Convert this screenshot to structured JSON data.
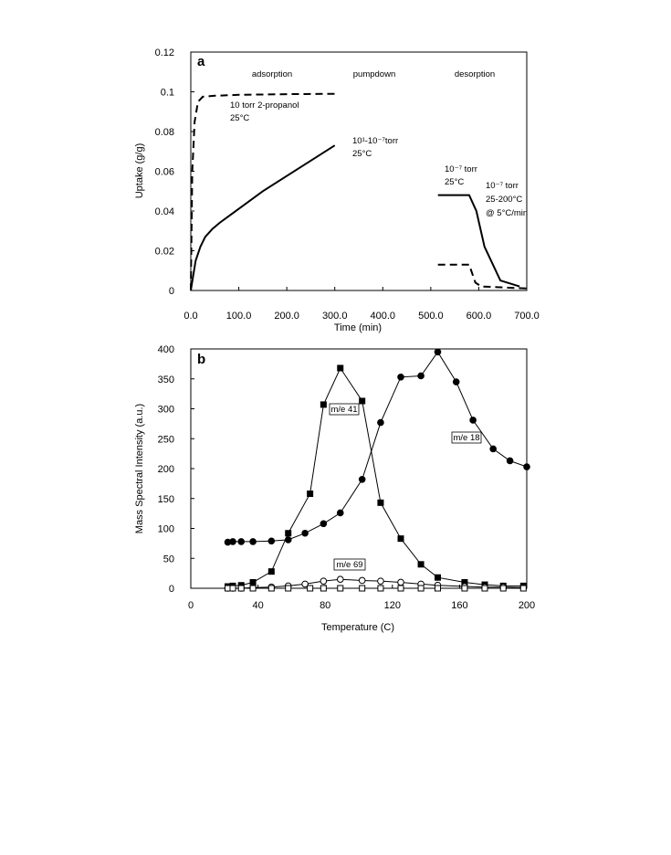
{
  "chart_data": [
    {
      "type": "line",
      "panel_label": "a",
      "ylabel": "Uptake (g/g)",
      "xlabel": "Time (min)",
      "xlim": [
        0,
        700
      ],
      "ylim": [
        0,
        0.12
      ],
      "x_ticks": [
        "0.0",
        "100.0",
        "200.0",
        "300.0",
        "400.0",
        "500.0",
        "600.0",
        "700.0"
      ],
      "y_ticks": [
        "0",
        "0.02",
        "0.04",
        "0.06",
        "0.08",
        "0.1",
        "0.12"
      ],
      "grid": false,
      "phase_labels": [
        "adsorption",
        "pumpdown",
        "desorption"
      ],
      "annotations": [
        {
          "lines": [
            "10 torr 2-propanol",
            "25°C"
          ]
        },
        {
          "lines": [
            "10¹-10⁻⁷torr",
            "25°C"
          ]
        },
        {
          "lines": [
            "10⁻⁷ torr",
            "25°C"
          ]
        },
        {
          "lines": [
            "10⁻⁷ torr",
            "25-200°C",
            "@ 5°C/min"
          ]
        }
      ],
      "series": [
        {
          "style": "dashed",
          "x": [
            0,
            3,
            8,
            15,
            25,
            50,
            100,
            200,
            300
          ],
          "y": [
            0,
            0.06,
            0.085,
            0.095,
            0.0975,
            0.098,
            0.0985,
            0.0988,
            0.099
          ]
        },
        {
          "style": "solid",
          "x": [
            0,
            10,
            20,
            30,
            45,
            60,
            150,
            300
          ],
          "y": [
            0,
            0.015,
            0.022,
            0.027,
            0.031,
            0.034,
            0.05,
            0.073
          ]
        },
        {
          "style": "solid",
          "x": [
            515,
            580,
            595,
            612,
            645,
            685
          ],
          "y": [
            0.048,
            0.048,
            0.04,
            0.022,
            0.005,
            0.002
          ]
        },
        {
          "style": "dashed",
          "x": [
            515,
            580,
            593,
            605,
            700
          ],
          "y": [
            0.013,
            0.013,
            0.004,
            0.002,
            0.001
          ]
        }
      ]
    },
    {
      "type": "scatter",
      "panel_label": "b",
      "ylabel": "Mass Spectral Intensity (a.u.)",
      "xlabel": "Temperature (C)",
      "xlim": [
        0,
        200
      ],
      "ylim": [
        0,
        400
      ],
      "x_ticks": [
        "0",
        "40",
        "80",
        "120",
        "160",
        "200"
      ],
      "y_ticks": [
        "0",
        "50",
        "100",
        "150",
        "200",
        "250",
        "300",
        "350",
        "400"
      ],
      "grid": false,
      "series": [
        {
          "label": "m/e 41",
          "marker": "filled-square",
          "x": [
            22,
            25,
            30,
            37,
            48,
            58,
            71,
            79,
            89,
            102,
            113,
            125,
            137,
            147,
            163,
            175,
            186,
            198
          ],
          "y": [
            3,
            4,
            5,
            10,
            28,
            92,
            158,
            307,
            368,
            313,
            143,
            83,
            40,
            18,
            10,
            6,
            4,
            4
          ]
        },
        {
          "label": "m/e 18",
          "marker": "filled-circle",
          "x": [
            22,
            25,
            30,
            37,
            48,
            58,
            68,
            79,
            89,
            102,
            113,
            125,
            137,
            147,
            158,
            168,
            180,
            190,
            200
          ],
          "y": [
            77,
            78,
            78,
            78,
            79,
            81,
            92,
            108,
            126,
            182,
            277,
            353,
            355,
            395,
            345,
            281,
            233,
            213,
            203
          ]
        },
        {
          "label": "m/e 69",
          "marker": "open-circle",
          "x": [
            22,
            25,
            30,
            37,
            48,
            58,
            68,
            79,
            89,
            102,
            113,
            125,
            137,
            147,
            163,
            175,
            186,
            198
          ],
          "y": [
            0,
            0,
            0,
            1,
            2,
            4,
            7,
            12,
            15,
            13,
            12,
            10,
            7,
            5,
            3,
            2,
            2,
            1
          ]
        },
        {
          "label": "",
          "marker": "open-square",
          "x": [
            22,
            25,
            30,
            37,
            48,
            58,
            71,
            79,
            89,
            102,
            113,
            125,
            137,
            147,
            163,
            175,
            186,
            198
          ],
          "y": [
            0,
            0,
            0,
            0,
            0,
            0,
            0,
            0,
            0,
            0,
            0,
            0,
            0,
            0,
            0,
            0,
            0,
            0
          ]
        }
      ]
    }
  ]
}
